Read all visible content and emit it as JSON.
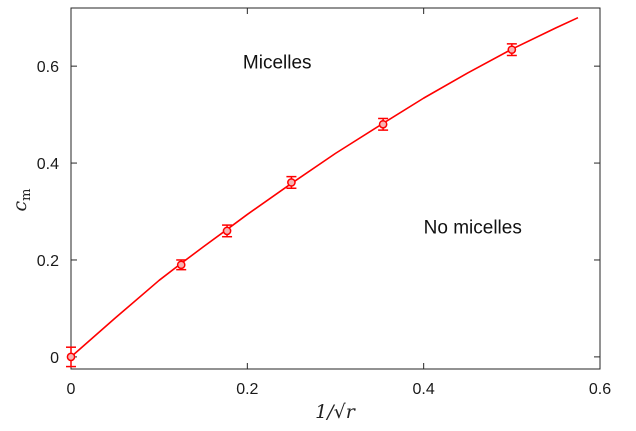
{
  "chart_data": {
    "type": "scatter",
    "xlabel": "1/√r",
    "ylabel": "c",
    "ylabel_subscript": "m",
    "xlim": [
      0,
      0.6
    ],
    "ylim": [
      -0.025,
      0.72
    ],
    "xticks": [
      0,
      0.2,
      0.4,
      0.6
    ],
    "xtick_labels": [
      "0",
      "0.2",
      "0.4",
      "0.6"
    ],
    "yticks": [
      0,
      0.2,
      0.4,
      0.6
    ],
    "ytick_labels": [
      "0",
      "0.2",
      "0.4",
      "0.6"
    ],
    "grid": false,
    "annotations": [
      {
        "text": "Micelles",
        "x": 0.195,
        "y": 0.595
      },
      {
        "text": "No micelles",
        "x": 0.4,
        "y": 0.255
      }
    ],
    "series": [
      {
        "kind": "points",
        "x": [
          0,
          0.125,
          0.177,
          0.25,
          0.354,
          0.5
        ],
        "y": [
          0,
          0.19,
          0.26,
          0.36,
          0.48,
          0.634
        ],
        "err": [
          0.02,
          0.01,
          0.012,
          0.012,
          0.012,
          0.012
        ],
        "color": "#ff0000"
      },
      {
        "kind": "curve",
        "x": [
          0,
          0.05,
          0.1,
          0.125,
          0.15,
          0.177,
          0.2,
          0.25,
          0.3,
          0.354,
          0.4,
          0.45,
          0.5,
          0.55,
          0.575
        ],
        "y": [
          0.0,
          0.08,
          0.158,
          0.193,
          0.227,
          0.263,
          0.294,
          0.358,
          0.42,
          0.482,
          0.534,
          0.586,
          0.635,
          0.679,
          0.7
        ],
        "color": "#ff0000"
      }
    ]
  }
}
